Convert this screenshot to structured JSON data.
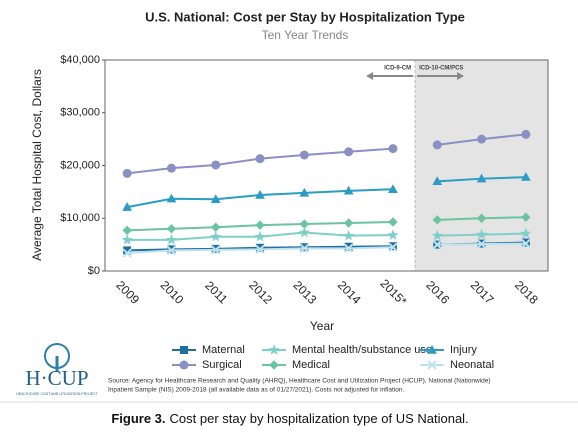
{
  "chart_data": {
    "type": "line",
    "title": "U.S. National: Cost per Stay by Hospitalization Type",
    "subtitle": "Ten Year Trends",
    "y_label": "Average Total Hospital Cost, Dollars",
    "x_label": "Year",
    "categories": [
      "2009",
      "2010",
      "2011",
      "2012",
      "2013",
      "2014",
      "2015*",
      "2016",
      "2017",
      "2018"
    ],
    "ylim": [
      0,
      40000
    ],
    "yticks": [
      {
        "value": 0,
        "label": "$0"
      },
      {
        "value": 10000,
        "label": "$10,000"
      },
      {
        "value": 20000,
        "label": "$20,000"
      },
      {
        "value": 30000,
        "label": "$30,000"
      },
      {
        "value": 40000,
        "label": "$40,000"
      }
    ],
    "periods": [
      {
        "label": "ICD-9-CM",
        "start": "2009",
        "end": "2015*",
        "shaded": false
      },
      {
        "label": "ICD-10-CM/PCS",
        "start": "2016",
        "end": "2018",
        "shaded": true
      }
    ],
    "series": [
      {
        "name": "Maternal",
        "color": "#1f6fa3",
        "marker": "square",
        "values": [
          3900,
          4100,
          4200,
          4400,
          4500,
          4600,
          4700,
          5000,
          5200,
          5400
        ]
      },
      {
        "name": "Mental health/substance use",
        "color": "#7fcfc9",
        "marker": "star",
        "values": [
          5900,
          5900,
          6500,
          6500,
          7300,
          6700,
          6800,
          6700,
          6900,
          7100
        ]
      },
      {
        "name": "Injury",
        "color": "#2b9cc4",
        "marker": "triangle",
        "values": [
          12100,
          13700,
          13600,
          14400,
          14800,
          15200,
          15500,
          17000,
          17500,
          17800
        ]
      },
      {
        "name": "Surgical",
        "color": "#8a8fc4",
        "marker": "circle",
        "values": [
          18500,
          19500,
          20100,
          21300,
          22000,
          22600,
          23200,
          23900,
          25000,
          25900
        ]
      },
      {
        "name": "Medical",
        "color": "#6cc3a0",
        "marker": "diamond",
        "values": [
          7700,
          8000,
          8300,
          8700,
          8900,
          9100,
          9300,
          9700,
          10000,
          10200
        ]
      },
      {
        "name": "Neonatal",
        "color": "#bfe3ec",
        "marker": "cross",
        "values": [
          3400,
          3900,
          4000,
          4100,
          4300,
          4300,
          4500,
          5000,
          5100,
          5200
        ]
      }
    ],
    "source": "Source: Agency for Healthcare Research and Quality (AHRQ), Healthcare Cost and Utilization Project (HCUP), National (Nationwide)",
    "source_2": "Inpatient Sample (NIS) 2009-2018 (all available data as of 01/27/2021). Costs not adjusted for inflation."
  },
  "logo": {
    "text": "H·CUP",
    "subtitle": "HEALTHCARE COST AND UTILIZATION PROJECT"
  },
  "figure_caption": {
    "label": "Figure 3.",
    "text": "Cost per stay by hospitalization type of US National."
  }
}
